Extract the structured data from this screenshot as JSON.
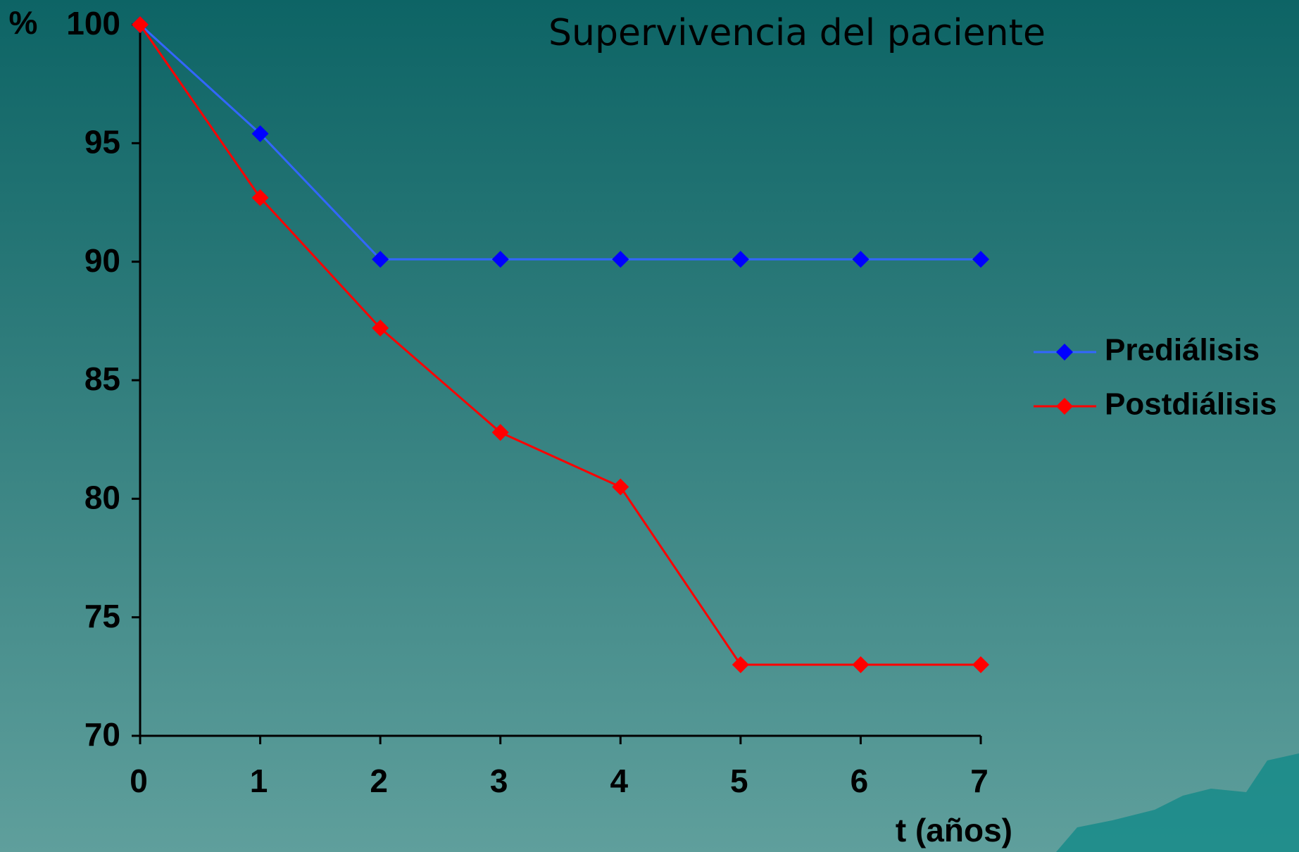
{
  "chart_data": {
    "type": "line",
    "title": "Supervivencia del paciente",
    "y_label": "%",
    "x_label": "t (años)",
    "x": [
      0,
      1,
      2,
      3,
      4,
      5,
      6,
      7
    ],
    "xlim": [
      0,
      7
    ],
    "xticks": [
      0,
      1,
      2,
      3,
      4,
      5,
      6,
      7
    ],
    "ylim": [
      70,
      100
    ],
    "yticks": [
      70,
      75,
      80,
      85,
      90,
      95,
      100
    ],
    "grid": false,
    "legend": "right",
    "series": [
      {
        "name": "Prediálisis",
        "color": "#0000ff",
        "line_color": "#3366ff",
        "values": [
          100,
          95.4,
          90.1,
          90.1,
          90.1,
          90.1,
          90.1,
          90.1
        ]
      },
      {
        "name": "Postdiálisis",
        "color": "#ff0000",
        "line_color": "#ff0000",
        "values": [
          100,
          92.7,
          87.2,
          82.8,
          80.5,
          73.0,
          73.0,
          73.0
        ]
      }
    ]
  }
}
